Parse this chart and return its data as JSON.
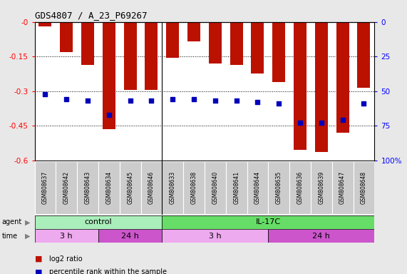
{
  "title": "GDS4807 / A_23_P69267",
  "samples": [
    "GSM808637",
    "GSM808642",
    "GSM808643",
    "GSM808634",
    "GSM808645",
    "GSM808646",
    "GSM808633",
    "GSM808638",
    "GSM808640",
    "GSM808641",
    "GSM808644",
    "GSM808635",
    "GSM808636",
    "GSM808639",
    "GSM808647",
    "GSM808648"
  ],
  "log2_ratio": [
    -0.02,
    -0.13,
    -0.185,
    -0.465,
    -0.295,
    -0.295,
    -0.155,
    -0.085,
    -0.18,
    -0.185,
    -0.225,
    -0.26,
    -0.555,
    -0.565,
    -0.48,
    -0.285
  ],
  "percentile_vals": [
    48,
    44,
    43,
    33,
    43,
    43,
    44,
    44,
    43,
    43,
    42,
    41,
    27,
    27,
    29,
    41
  ],
  "bar_color": "#bb1100",
  "dot_color": "#0000bb",
  "ylim_left": [
    -0.6,
    0.0
  ],
  "ylim_right": [
    0,
    100
  ],
  "yticks_left": [
    0.0,
    -0.15,
    -0.3,
    -0.45,
    -0.6
  ],
  "yticks_right": [
    0,
    25,
    50,
    75,
    100
  ],
  "ytick_labels_left": [
    "-0",
    "-0.15",
    "-0.3",
    "-0.45",
    "-0.6"
  ],
  "ytick_labels_right": [
    "100%",
    "75",
    "50",
    "25",
    "0"
  ],
  "agent_groups": [
    {
      "label": "control",
      "start": 0,
      "end": 6,
      "color": "#aaeebb"
    },
    {
      "label": "IL-17C",
      "start": 6,
      "end": 16,
      "color": "#66dd66"
    }
  ],
  "time_groups": [
    {
      "label": "3 h",
      "start": 0,
      "end": 3,
      "color": "#eeaaee"
    },
    {
      "label": "24 h",
      "start": 3,
      "end": 6,
      "color": "#cc55cc"
    },
    {
      "label": "3 h",
      "start": 6,
      "end": 11,
      "color": "#eeaaee"
    },
    {
      "label": "24 h",
      "start": 11,
      "end": 16,
      "color": "#cc55cc"
    }
  ],
  "legend_items": [
    {
      "label": "log2 ratio",
      "color": "#bb1100"
    },
    {
      "label": "percentile rank within the sample",
      "color": "#0000bb"
    }
  ],
  "background_color": "#e8e8e8",
  "plot_bg": "#ffffff",
  "tick_label_bg": "#cccccc"
}
